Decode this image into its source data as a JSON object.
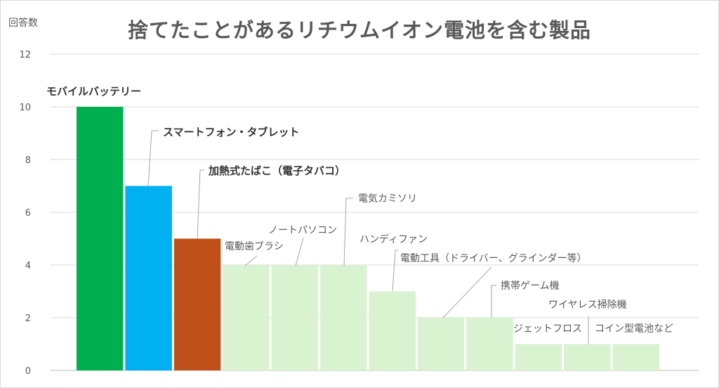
{
  "chart_data": {
    "type": "bar",
    "title": "捨てたことがあるリチウムイオン電池を含む製品",
    "ylabel": "回答数",
    "xlabel": "",
    "ylim": [
      0,
      12
    ],
    "yticks": [
      0,
      2,
      4,
      6,
      8,
      10,
      12
    ],
    "grid": true,
    "categories": [
      "モバイルバッテリー",
      "スマートフォン・タブレット",
      "加熱式たばこ（電子タバコ）",
      "電動歯ブラシ",
      "ノートパソコン",
      "電気カミソリ",
      "ハンディファン",
      "電動工具（ドライバー、グラインダー等）",
      "携帯ゲーム機",
      "ジェットフロス",
      "ワイヤレス掃除機",
      "コイン型電池など"
    ],
    "values": [
      10,
      7,
      5,
      4,
      4,
      4,
      3,
      2,
      2,
      1,
      1,
      1
    ],
    "colors": [
      "#00b050",
      "#00b0f0",
      "#c0501a",
      "#d9f2d0",
      "#d9f2d0",
      "#d9f2d0",
      "#d9f2d0",
      "#d9f2d0",
      "#d9f2d0",
      "#d9f2d0",
      "#d9f2d0",
      "#d9f2d0"
    ],
    "highlighted": [
      true,
      true,
      true,
      false,
      false,
      false,
      false,
      false,
      false,
      false,
      false,
      false
    ]
  }
}
